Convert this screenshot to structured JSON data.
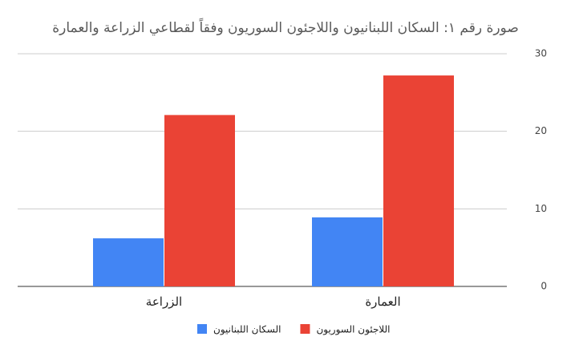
{
  "chart_data": {
    "type": "bar",
    "title": "صورة رقم ١: السكان اللبنانيون واللاجئون السوريون وفقاً لقطاعي الزراعة والعمارة",
    "categories": [
      "الزراعة",
      "العمارة"
    ],
    "series": [
      {
        "name": "السكان اللبنانيون",
        "color": "#4285f4",
        "values": [
          6.2,
          8.9
        ]
      },
      {
        "name": "اللاجئون السوريون",
        "color": "#ea4335",
        "values": [
          22.1,
          27.2
        ]
      }
    ],
    "ylim": [
      0,
      30
    ],
    "yticks": [
      0,
      10,
      20,
      30
    ],
    "grid": true
  }
}
